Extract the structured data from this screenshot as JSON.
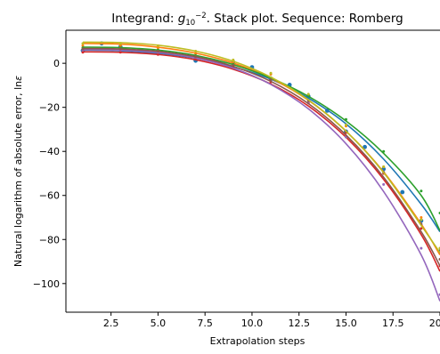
{
  "chart_data": {
    "type": "line",
    "title": {
      "prefix": "Integrand: ",
      "g": "g",
      "g_subscript": "10",
      "g_superscript": "−2",
      "suffix": ". Stack plot. Sequence: Romberg"
    },
    "xlabel": "Extrapolation steps",
    "ylabel": {
      "text": "Natural logarithm of absolute error, ln",
      "symbol": "ε"
    },
    "xlim": [
      0.1,
      20.0
    ],
    "ylim": [
      -113,
      15
    ],
    "x_ticks": [
      2.5,
      5.0,
      7.5,
      10.0,
      12.5,
      15.0,
      17.5,
      20.0
    ],
    "x_tick_labels": [
      "2.5",
      "5.0",
      "7.5",
      "10.0",
      "12.5",
      "15.0",
      "17.5",
      "20.0"
    ],
    "y_ticks": [
      0,
      -20,
      -40,
      -60,
      -80,
      -100
    ],
    "y_tick_labels": [
      "0",
      "−20",
      "−40",
      "−60",
      "−80",
      "−100"
    ],
    "grid": false,
    "legend": "none",
    "series": [
      {
        "color": "#1f77b4",
        "points": [
          [
            1,
            5.8
          ],
          [
            2,
            9.0
          ],
          [
            3,
            7.5
          ],
          [
            4,
            6.0
          ],
          [
            5,
            4.5
          ],
          [
            7,
            1.2
          ],
          [
            9,
            0.5
          ],
          [
            10,
            -1.8
          ],
          [
            11,
            -7.0
          ],
          [
            12,
            -9.8
          ],
          [
            13,
            -15.0
          ],
          [
            14,
            -21.5
          ],
          [
            15,
            -31.0
          ],
          [
            16,
            -38.0
          ],
          [
            17,
            -48.0
          ],
          [
            18,
            -58.5
          ],
          [
            19,
            -71.5
          ],
          [
            20,
            -85.5
          ]
        ],
        "fit": [
          [
            1,
            6.0
          ],
          [
            3,
            5.7
          ],
          [
            5,
            4.5
          ],
          [
            7,
            2.3
          ],
          [
            9,
            -1.6
          ],
          [
            11,
            -7.2
          ],
          [
            13,
            -15.8
          ],
          [
            15,
            -27.5
          ],
          [
            17,
            -43.5
          ],
          [
            19,
            -64.0
          ],
          [
            20,
            -76.5
          ]
        ]
      },
      {
        "color": "#ff7f0e",
        "points": [
          [
            1,
            8.0
          ],
          [
            3,
            8.0
          ],
          [
            5,
            7.0
          ],
          [
            7,
            4.5
          ],
          [
            9,
            1.0
          ],
          [
            11,
            -5.0
          ],
          [
            13,
            -14.5
          ],
          [
            15,
            -28.5
          ],
          [
            17,
            -47.0
          ],
          [
            19,
            -70.0
          ],
          [
            20,
            -84.0
          ]
        ],
        "fit": [
          [
            1,
            9.0
          ],
          [
            3,
            8.7
          ],
          [
            5,
            7.3
          ],
          [
            7,
            4.6
          ],
          [
            9,
            0.1
          ],
          [
            11,
            -6.8
          ],
          [
            13,
            -16.8
          ],
          [
            15,
            -30.8
          ],
          [
            17,
            -49.3
          ],
          [
            19,
            -73.0
          ],
          [
            20,
            -87.0
          ]
        ]
      },
      {
        "color": "#2ca02c",
        "points": [
          [
            1,
            7.0
          ],
          [
            3,
            7.0
          ],
          [
            5,
            6.0
          ],
          [
            7,
            3.5
          ],
          [
            9,
            -0.5
          ],
          [
            11,
            -6.5
          ],
          [
            13,
            -14.5
          ],
          [
            15,
            -25.5
          ],
          [
            17,
            -40.0
          ],
          [
            19,
            -58.0
          ],
          [
            20,
            -68.0
          ]
        ],
        "fit": [
          [
            1,
            7.3
          ],
          [
            3,
            7.1
          ],
          [
            5,
            6.0
          ],
          [
            7,
            3.6
          ],
          [
            9,
            -0.6
          ],
          [
            11,
            -6.7
          ],
          [
            13,
            -15.0
          ],
          [
            15,
            -26.2
          ],
          [
            17,
            -40.9
          ],
          [
            19,
            -60.0
          ],
          [
            20,
            -76.0
          ]
        ]
      },
      {
        "color": "#d62728",
        "points": [
          [
            1,
            5.0
          ],
          [
            3,
            5.0
          ],
          [
            5,
            4.0
          ],
          [
            7,
            2.0
          ],
          [
            9,
            -2.0
          ],
          [
            11,
            -8.5
          ],
          [
            13,
            -18.0
          ],
          [
            15,
            -31.5
          ],
          [
            17,
            -50.0
          ],
          [
            19,
            -75.0
          ],
          [
            20,
            -92.0
          ]
        ],
        "fit": [
          [
            1,
            5.2
          ],
          [
            3,
            5.0
          ],
          [
            5,
            4.0
          ],
          [
            7,
            1.6
          ],
          [
            9,
            -2.7
          ],
          [
            11,
            -9.4
          ],
          [
            13,
            -19.4
          ],
          [
            15,
            -33.6
          ],
          [
            17,
            -52.7
          ],
          [
            19,
            -77.8
          ],
          [
            20,
            -94.5
          ]
        ]
      },
      {
        "color": "#9467bd",
        "points": [
          [
            1,
            6.0
          ],
          [
            3,
            6.0
          ],
          [
            5,
            5.0
          ],
          [
            7,
            3.0
          ],
          [
            9,
            -1.0
          ],
          [
            11,
            -7.5
          ],
          [
            13,
            -18.0
          ],
          [
            15,
            -33.5
          ],
          [
            17,
            -55.0
          ],
          [
            19,
            -84.0
          ],
          [
            20,
            -105.0
          ]
        ],
        "fit": [
          [
            1,
            6.2
          ],
          [
            3,
            6.0
          ],
          [
            5,
            4.9
          ],
          [
            7,
            2.4
          ],
          [
            9,
            -2.2
          ],
          [
            11,
            -9.6
          ],
          [
            13,
            -20.7
          ],
          [
            15,
            -36.5
          ],
          [
            17,
            -58.2
          ],
          [
            19,
            -87.0
          ],
          [
            20,
            -108.0
          ]
        ]
      },
      {
        "color": "#8c564b",
        "points": [
          [
            1,
            6.5
          ],
          [
            3,
            6.5
          ],
          [
            5,
            5.5
          ],
          [
            7,
            3.0
          ],
          [
            9,
            -1.0
          ],
          [
            11,
            -7.5
          ],
          [
            13,
            -17.0
          ],
          [
            15,
            -31.0
          ],
          [
            17,
            -49.5
          ],
          [
            19,
            -73.0
          ],
          [
            20,
            -89.0
          ]
        ],
        "fit": [
          [
            1,
            6.7
          ],
          [
            3,
            6.5
          ],
          [
            5,
            5.4
          ],
          [
            7,
            3.0
          ],
          [
            9,
            -1.4
          ],
          [
            11,
            -8.2
          ],
          [
            13,
            -18.3
          ],
          [
            15,
            -32.6
          ],
          [
            17,
            -51.7
          ],
          [
            19,
            -76.5
          ],
          [
            20,
            -92.0
          ]
        ]
      },
      {
        "color": "#bcbd22",
        "points": [
          [
            1,
            9.0
          ],
          [
            3,
            9.0
          ],
          [
            5,
            8.0
          ],
          [
            7,
            5.5
          ],
          [
            9,
            1.5
          ],
          [
            11,
            -4.5
          ],
          [
            13,
            -14.0
          ],
          [
            15,
            -28.0
          ],
          [
            17,
            -47.0
          ],
          [
            19,
            -71.0
          ],
          [
            20,
            -84.0
          ]
        ],
        "fit": [
          [
            1,
            9.6
          ],
          [
            3,
            9.4
          ],
          [
            5,
            8.2
          ],
          [
            7,
            5.5
          ],
          [
            9,
            0.9
          ],
          [
            11,
            -6.3
          ],
          [
            13,
            -16.6
          ],
          [
            15,
            -30.8
          ],
          [
            17,
            -49.6
          ],
          [
            19,
            -73.6
          ],
          [
            20,
            -86.0
          ]
        ]
      }
    ]
  }
}
